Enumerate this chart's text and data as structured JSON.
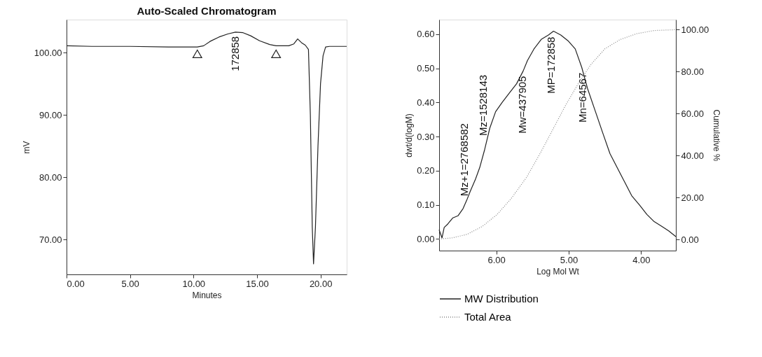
{
  "chart_data": [
    {
      "type": "line",
      "title": "Auto-Scaled Chromatogram",
      "xlabel": "Minutes",
      "ylabel": "mV",
      "xlim": [
        0,
        22.06
      ],
      "ylim": [
        64.4,
        105.3
      ],
      "xticks": [
        {
          "value": 0,
          "label": "0.00"
        },
        {
          "value": 5,
          "label": "5.00"
        },
        {
          "value": 10,
          "label": "10.00"
        },
        {
          "value": 15,
          "label": "15.00"
        },
        {
          "value": 20,
          "label": "20.00"
        }
      ],
      "yticks": [
        {
          "value": 70,
          "label": "70.00"
        },
        {
          "value": 80,
          "label": "80.00"
        },
        {
          "value": 90,
          "label": "90.00"
        },
        {
          "value": 100,
          "label": "100.00"
        }
      ],
      "grid": false,
      "legend": false,
      "series": [
        {
          "type": "line",
          "color": "#222222",
          "marker": "none",
          "line_style": "solid",
          "x": [
            0,
            2,
            5,
            8,
            10.3,
            10.8,
            11.3,
            12,
            12.7,
            13.3,
            13.9,
            14.5,
            15.2,
            16,
            16.5,
            17.5,
            17.9,
            18.2,
            18.5,
            18.8,
            19.05,
            19.2,
            19.35,
            19.45,
            19.6,
            19.8,
            20.0,
            20.2,
            20.4,
            20.7,
            22.06
          ],
          "values": [
            101.1,
            101.0,
            101.0,
            100.9,
            100.9,
            101.1,
            101.8,
            102.5,
            103.0,
            103.3,
            103.2,
            102.7,
            101.9,
            101.3,
            101.1,
            101.1,
            101.4,
            102.2,
            101.6,
            101.2,
            100.5,
            90,
            72,
            66.1,
            72,
            85,
            95,
            99.5,
            100.9,
            101.0,
            101.0
          ]
        },
        {
          "type": "scatter",
          "color": "#222222",
          "marker": "triangle",
          "x": [
            10.3,
            16.5
          ],
          "values": [
            99.8,
            99.8
          ]
        }
      ],
      "annotations": [
        {
          "text": "172858",
          "x": 13.3,
          "y": 103.3
        }
      ]
    },
    {
      "type": "line",
      "xlabel": "Log Mol Wt",
      "ylabel": "dwt/d(logM)",
      "y2label": "Cumulative %",
      "xlim": [
        6.79,
        3.52
      ],
      "ylim": [
        -0.034,
        0.643
      ],
      "y2lim": [
        -5.2,
        104.8
      ],
      "xticks": [
        {
          "value": 6,
          "label": "6.00"
        },
        {
          "value": 5,
          "label": "5.00"
        },
        {
          "value": 4,
          "label": "4.00"
        }
      ],
      "yticks": [
        {
          "value": 0,
          "label": "0.00"
        },
        {
          "value": 0.1,
          "label": "0.10"
        },
        {
          "value": 0.2,
          "label": "0.20"
        },
        {
          "value": 0.3,
          "label": "0.30"
        },
        {
          "value": 0.4,
          "label": "0.40"
        },
        {
          "value": 0.5,
          "label": "0.50"
        },
        {
          "value": 0.6,
          "label": "0.60"
        }
      ],
      "y2ticks": [
        {
          "value": 0,
          "label": "0.00"
        },
        {
          "value": 20,
          "label": "20.00"
        },
        {
          "value": 40,
          "label": "40.00"
        },
        {
          "value": 60,
          "label": "60.00"
        },
        {
          "value": 80,
          "label": "80.00"
        },
        {
          "value": 100,
          "label": "100.00"
        }
      ],
      "grid": false,
      "legend": "bottom",
      "series": [
        {
          "type": "line",
          "name": "MW Distribution",
          "color": "#222222",
          "marker": "none",
          "line_style": "solid",
          "x": [
            6.79,
            6.75,
            6.72,
            6.67,
            6.6,
            6.53,
            6.46,
            6.41,
            6.36,
            6.29,
            6.23,
            6.16,
            6.09,
            6.01,
            5.92,
            5.82,
            5.72,
            5.63,
            5.57,
            5.48,
            5.38,
            5.28,
            5.21,
            5.11,
            5.01,
            4.91,
            4.82,
            4.74,
            4.63,
            4.53,
            4.43,
            4.33,
            4.23,
            4.13,
            4.02,
            3.92,
            3.82,
            3.72,
            3.62,
            3.52
          ],
          "values": [
            0.027,
            0.003,
            0.034,
            0.044,
            0.062,
            0.068,
            0.089,
            0.113,
            0.14,
            0.174,
            0.209,
            0.263,
            0.325,
            0.373,
            0.4,
            0.428,
            0.455,
            0.492,
            0.523,
            0.557,
            0.585,
            0.598,
            0.609,
            0.598,
            0.581,
            0.557,
            0.503,
            0.441,
            0.373,
            0.311,
            0.25,
            0.209,
            0.168,
            0.127,
            0.099,
            0.072,
            0.051,
            0.038,
            0.024,
            0.007
          ]
        },
        {
          "type": "line",
          "name": "Total Area",
          "axis": "y2",
          "color": "#888888",
          "marker": "none",
          "line_style": "dotted",
          "x": [
            6.79,
            6.6,
            6.4,
            6.19,
            5.99,
            5.79,
            5.58,
            5.38,
            5.21,
            5.04,
            4.87,
            4.7,
            4.5,
            4.29,
            4.06,
            3.82,
            3.52
          ],
          "values": [
            0.3,
            0.9,
            2.6,
            6.4,
            12.0,
            19.8,
            29.8,
            42.0,
            53.1,
            64.2,
            74.2,
            83.1,
            90.9,
            95.3,
            98.1,
            99.6,
            100.0
          ]
        }
      ],
      "annotations": [
        {
          "text": "Mz+1=2768582",
          "x": 6.44,
          "y": 0.113
        },
        {
          "text": "Mz=1528143",
          "x": 6.18,
          "y": 0.29
        },
        {
          "text": "Mw=437905",
          "x": 5.64,
          "y": 0.49
        },
        {
          "text": "MP=172858",
          "x": 5.24,
          "y": 0.605
        },
        {
          "text": "Mn=64567",
          "x": 4.81,
          "y": 0.5
        }
      ]
    }
  ]
}
